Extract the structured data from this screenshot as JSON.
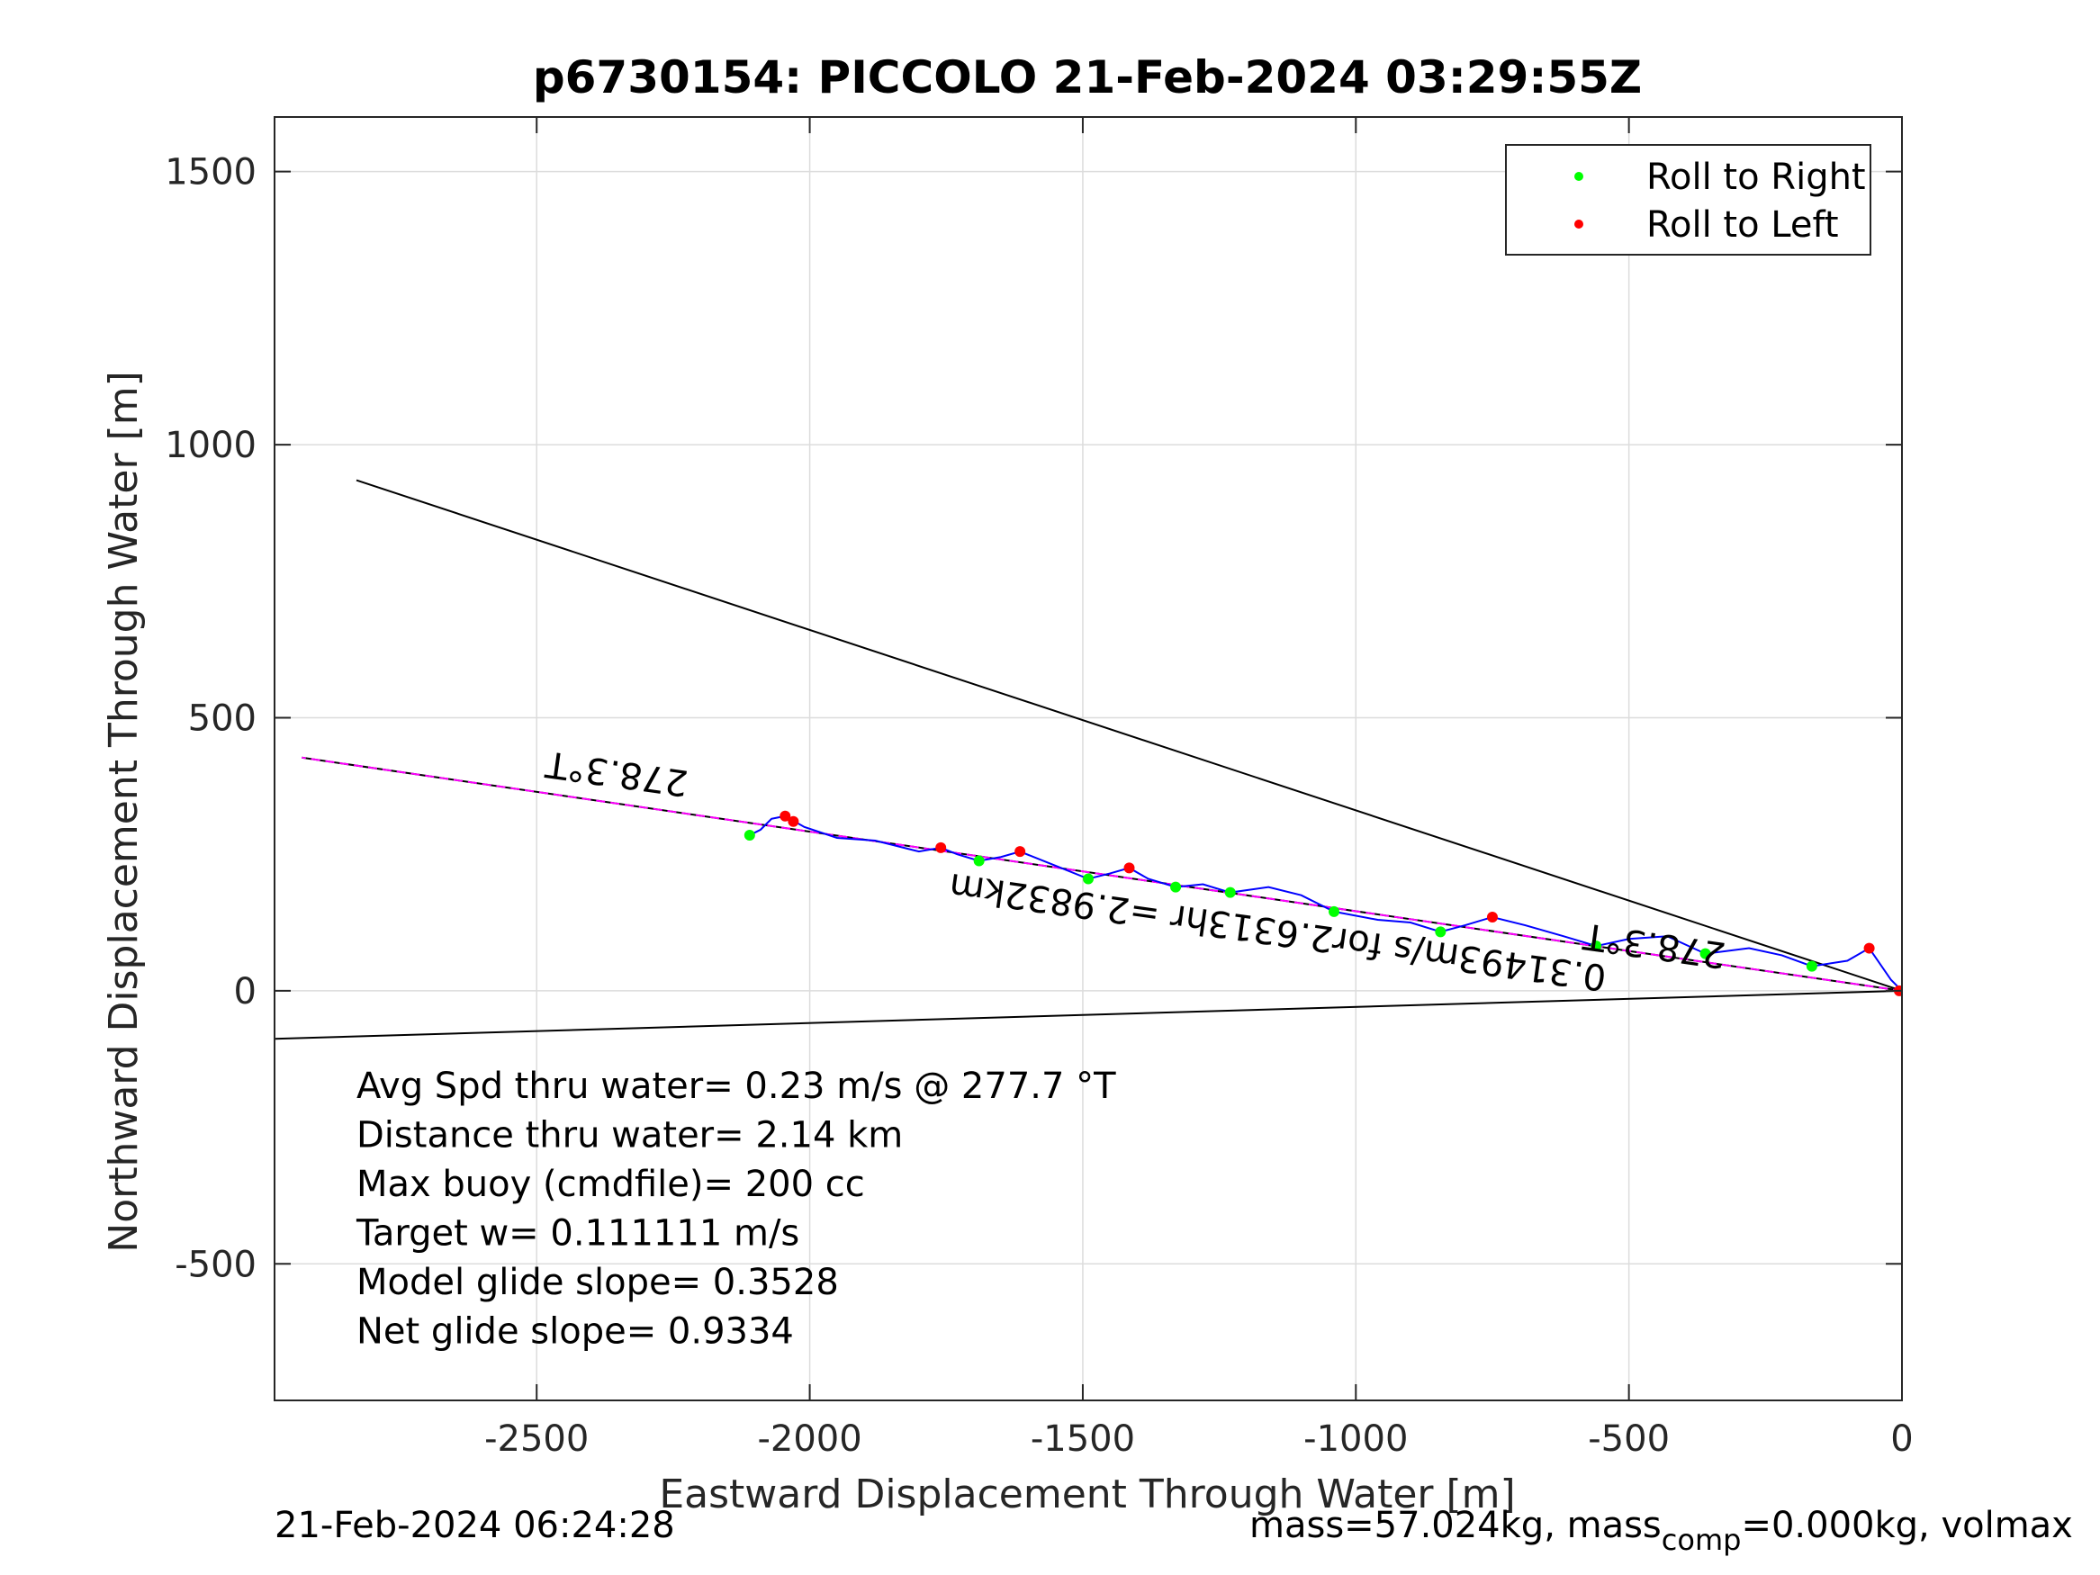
{
  "chart_data": {
    "type": "line",
    "title": "p6730154: PICCOLO 21-Feb-2024 03:29:55Z",
    "xlabel": "Eastward Displacement Through Water [m]",
    "ylabel": "Northward Displacement Through Water [m]",
    "xlim": [
      -2980,
      0
    ],
    "ylim": [
      -750,
      1600
    ],
    "xticks": [
      -2500,
      -2000,
      -1500,
      -1000,
      -500,
      0
    ],
    "yticks": [
      -500,
      0,
      500,
      1000,
      1500
    ],
    "xtick_labels": [
      "-2500",
      "-2000",
      "-1500",
      "-1000",
      "-500",
      "0"
    ],
    "ytick_labels": [
      "-500",
      "0",
      "500",
      "1000",
      "1500"
    ],
    "grid": true,
    "legend": {
      "placement": "top-right",
      "entries": [
        {
          "label": "Roll to Right",
          "color": "#00ff00"
        },
        {
          "label": "Roll to Left",
          "color": "#ff0000"
        }
      ]
    },
    "reference_lines": [
      {
        "x": [
          0,
          -2930
        ],
        "y": [
          0,
          427
        ],
        "color": "#000000"
      },
      {
        "x": [
          0,
          -2830
        ],
        "y": [
          0,
          935
        ],
        "color": "#000000"
      },
      {
        "x": [
          0,
          -2980
        ],
        "y": [
          0,
          -88
        ],
        "color": "#000000"
      }
    ],
    "heading_line": {
      "x": [
        0,
        -2930
      ],
      "y": [
        0,
        427
      ],
      "color": "#ff00ff"
    },
    "track": {
      "color": "#0000ff",
      "x": [
        0,
        -20,
        -60,
        -100,
        -165,
        -220,
        -280,
        -360,
        -430,
        -500,
        -560,
        -620,
        -690,
        -750,
        -800,
        -845,
        -900,
        -960,
        -1040,
        -1100,
        -1160,
        -1230,
        -1280,
        -1330,
        -1380,
        -1415,
        -1450,
        -1490,
        -1540,
        -1615,
        -1650,
        -1690,
        -1730,
        -1760,
        -1800,
        -1880,
        -1950,
        -2010,
        -2045,
        -2070,
        -2090,
        -2110
      ],
      "y": [
        0,
        20,
        78,
        55,
        45,
        65,
        78,
        68,
        100,
        95,
        82,
        100,
        120,
        135,
        120,
        108,
        125,
        130,
        145,
        175,
        190,
        180,
        195,
        190,
        205,
        225,
        215,
        205,
        225,
        255,
        245,
        238,
        250,
        262,
        255,
        275,
        280,
        300,
        320,
        315,
        295,
        285
      ]
    },
    "roll_right": {
      "color": "#00ff00",
      "x": [
        -165,
        -360,
        -560,
        -845,
        -1040,
        -1230,
        -1330,
        -1490,
        -1690,
        -2110
      ],
      "y": [
        45,
        68,
        82,
        108,
        145,
        180,
        190,
        205,
        238,
        285
      ]
    },
    "roll_left": {
      "color": "#ff0000",
      "x": [
        -5,
        -60,
        -750,
        -1415,
        -1615,
        -1760,
        -2030,
        -2045
      ],
      "y": [
        0,
        78,
        135,
        225,
        255,
        262,
        310,
        320
      ]
    },
    "annotations": [
      {
        "text": "278.3°T",
        "x": -2350,
        "y": 420,
        "rotation": 188
      },
      {
        "text": "278.3°T",
        "x": -450,
        "y": 105,
        "rotation": 188
      },
      {
        "text": "0.31493m/s for2.6313hr =2.9832km",
        "x": -1140,
        "y": 130,
        "rotation": 188
      }
    ],
    "stats": [
      "Avg Spd thru water=  0.23 m/s @ 277.7 °T",
      "Distance thru water=  2.14 km",
      "Max buoy (cmdfile)= 200 cc",
      "Target w= 0.111111 m/s",
      "Model glide slope= 0.3528",
      "Net glide slope= 0.9334"
    ]
  },
  "footer": {
    "timestamp": "21-Feb-2024 06:24:28",
    "mass_prefix": "mass=57.024kg, mass",
    "mass_sub": "comp",
    "mass_suffix": "=0.000kg, volmax"
  }
}
